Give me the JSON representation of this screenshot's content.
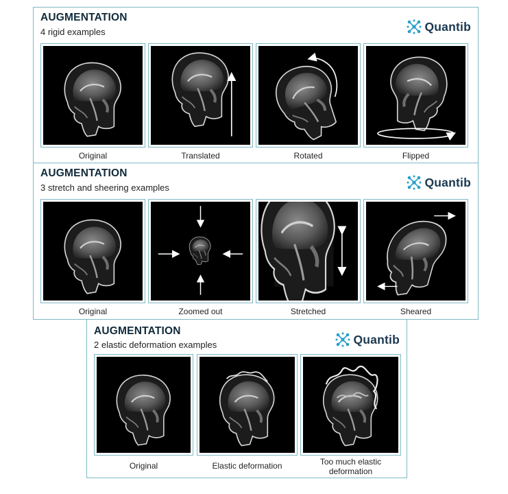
{
  "panels": [
    {
      "title": "AUGMENTATION",
      "subtitle": "4 rigid examples",
      "logo": "Quantib",
      "captions": [
        "Original",
        "Translated",
        "Rotated",
        "Flipped"
      ]
    },
    {
      "title": "AUGMENTATION",
      "subtitle": "3 stretch and sheering examples",
      "logo": "Quantib",
      "captions": [
        "Original",
        "Zoomed out",
        "Stretched",
        "Sheared"
      ]
    },
    {
      "title": "AUGMENTATION",
      "subtitle": "2 elastic deformation examples",
      "logo": "Quantib",
      "captions": [
        "Original",
        "Elastic deformation",
        "Too much elastic deformation"
      ]
    }
  ],
  "colors": {
    "frame": "#7fb9c4",
    "logo_text": "#1b3850",
    "logo_icon": "#2a9fc9"
  },
  "icons": [
    "quantib-logo-icon",
    "arrow-up-icon",
    "arrow-down-icon",
    "arrow-left-icon",
    "arrow-right-icon",
    "curved-rotate-arrow-icon",
    "ellipse-rotate-arrow-icon",
    "double-vertical-arrow-icon"
  ]
}
